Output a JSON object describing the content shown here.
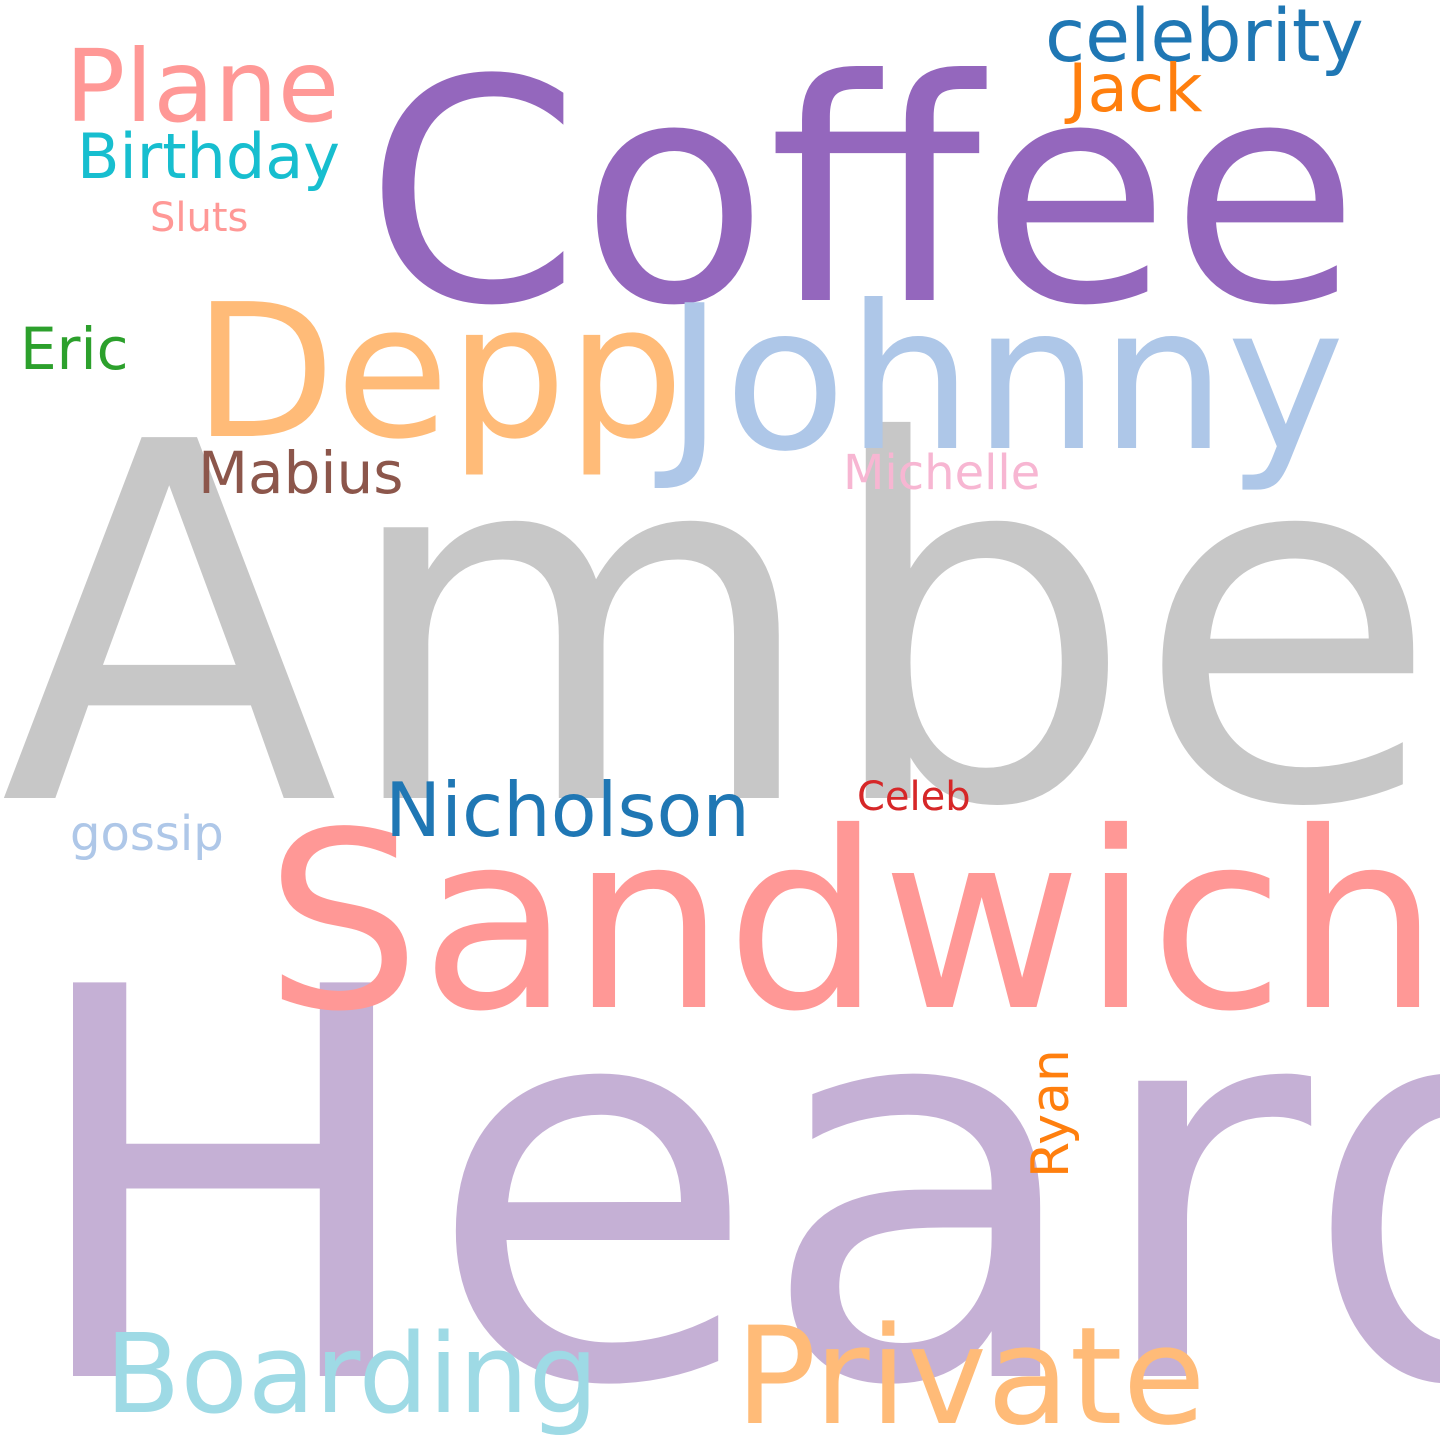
{
  "words": {
    "heard": {
      "text": "Heard",
      "color": "#c5b0d5"
    },
    "amber": {
      "text": "Amber",
      "color": "#c7c7c7"
    },
    "coffee": {
      "text": "Coffee",
      "color": "#9467bd"
    },
    "sandwich": {
      "text": "Sandwich",
      "color": "#ff9896"
    },
    "johnny": {
      "text": "Johnny",
      "color": "#aec7e8"
    },
    "depp": {
      "text": "Depp",
      "color": "#ffbb78"
    },
    "private": {
      "text": "Private",
      "color": "#ffbb78"
    },
    "boarding": {
      "text": "Boarding",
      "color": "#9edae5"
    },
    "plane": {
      "text": "Plane",
      "color": "#ff9896"
    },
    "nicholson": {
      "text": "Nicholson",
      "color": "#1f77b4"
    },
    "celebrity": {
      "text": "celebrity",
      "color": "#1f77b4"
    },
    "birthday": {
      "text": "Birthday",
      "color": "#17becf"
    },
    "jack": {
      "text": "Jack",
      "color": "#ff7f0e"
    },
    "mabius": {
      "text": "Mabius",
      "color": "#8c564b"
    },
    "eric": {
      "text": "Eric",
      "color": "#2ca02c"
    },
    "ryan": {
      "text": "Ryan",
      "color": "#ff7f0e"
    },
    "michelle": {
      "text": "Michelle",
      "color": "#f7b6d2"
    },
    "gossip": {
      "text": "gossip",
      "color": "#aec7e8"
    },
    "celeb": {
      "text": "Celeb",
      "color": "#d62728"
    },
    "sluts": {
      "text": "Sluts",
      "color": "#ff9896"
    }
  }
}
